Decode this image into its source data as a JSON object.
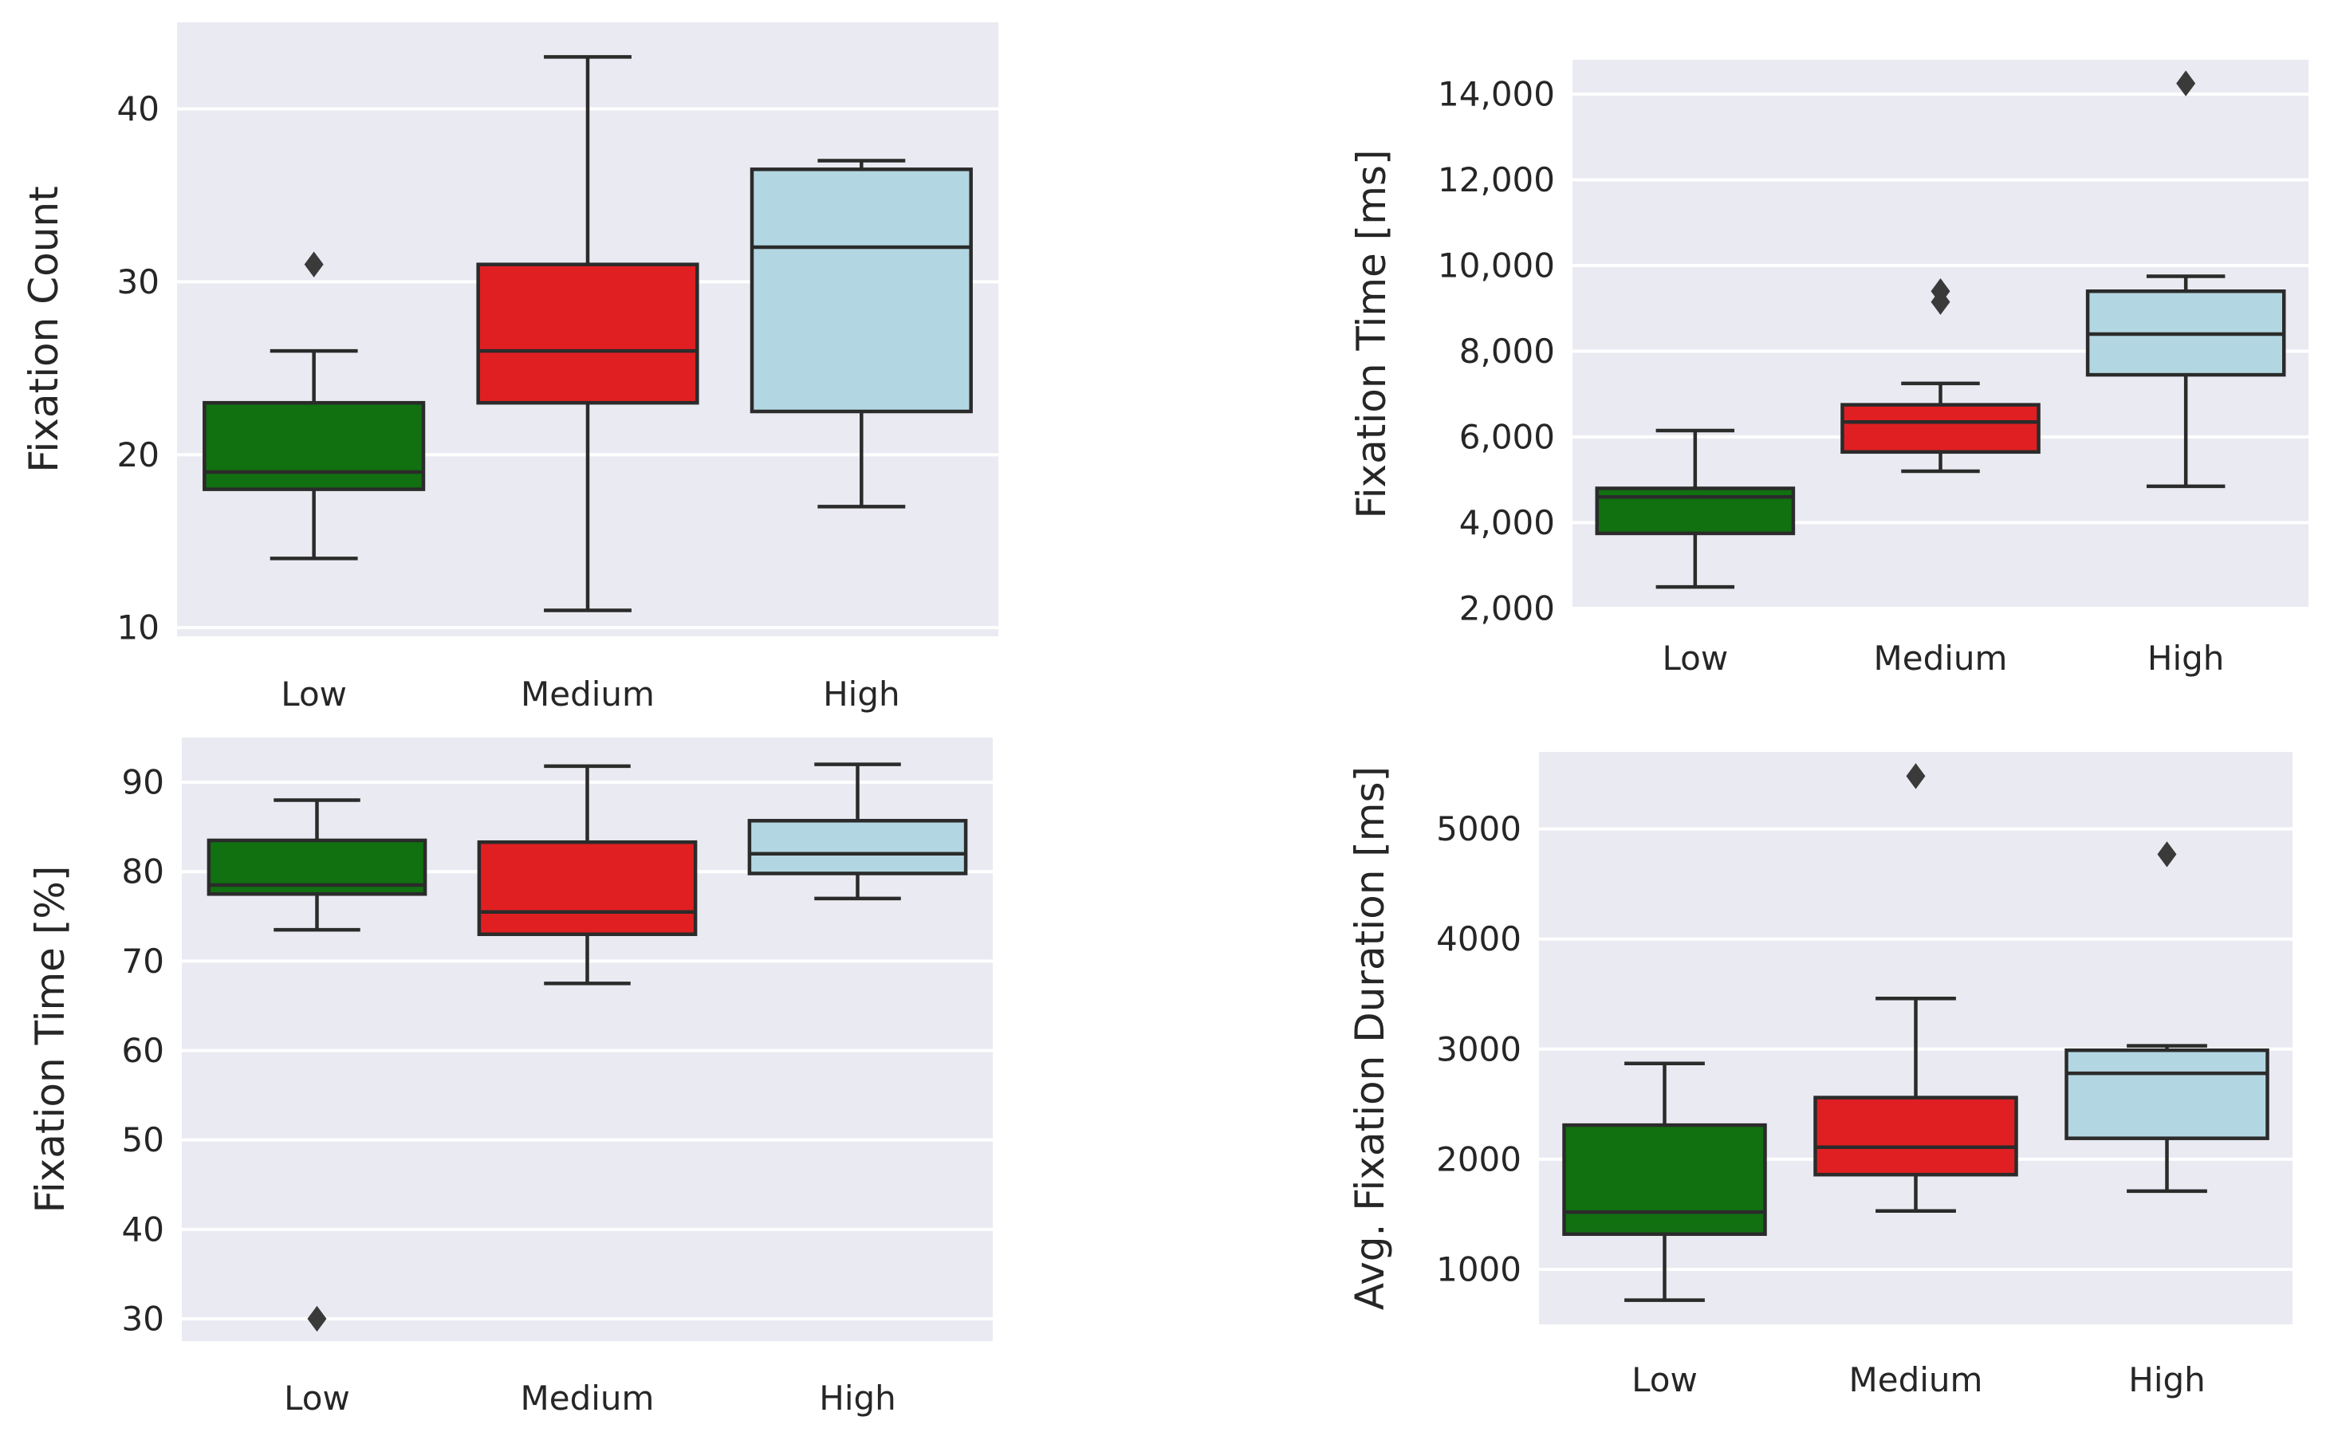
{
  "chart_data": [
    {
      "type": "box",
      "ylabel": "Fixation Count",
      "categories": [
        "Low",
        "Medium",
        "High"
      ],
      "ylim": [
        9.5,
        45
      ],
      "yticks": [
        10,
        20,
        30,
        40
      ],
      "ytick_labels": [
        "10",
        "20",
        "30",
        "40"
      ],
      "boxes": [
        {
          "category": "Low",
          "whisker_low": 14,
          "q1": 18,
          "median": 19,
          "q3": 23,
          "whisker_high": 26,
          "outliers": [
            31
          ]
        },
        {
          "category": "Medium",
          "whisker_low": 11,
          "q1": 23,
          "median": 26,
          "q3": 31,
          "whisker_high": 43,
          "outliers": []
        },
        {
          "category": "High",
          "whisker_low": 17,
          "q1": 22.5,
          "median": 32,
          "q3": 36.5,
          "whisker_high": 37,
          "outliers": []
        }
      ]
    },
    {
      "type": "box",
      "ylabel": "Fixation Time [ms]",
      "categories": [
        "Low",
        "Medium",
        "High"
      ],
      "ylim": [
        2000,
        14800
      ],
      "yticks": [
        2000,
        4000,
        6000,
        8000,
        10000,
        12000,
        14000
      ],
      "ytick_labels": [
        "2,000",
        "4,000",
        "6,000",
        "8,000",
        "10,000",
        "12,000",
        "14,000"
      ],
      "boxes": [
        {
          "category": "Low",
          "whisker_low": 2500,
          "q1": 3750,
          "median": 4600,
          "q3": 4800,
          "whisker_high": 6150,
          "outliers": []
        },
        {
          "category": "Medium",
          "whisker_low": 5200,
          "q1": 5650,
          "median": 6350,
          "q3": 6750,
          "whisker_high": 7250,
          "outliers": [
            9150,
            9400
          ]
        },
        {
          "category": "High",
          "whisker_low": 4850,
          "q1": 7450,
          "median": 8400,
          "q3": 9400,
          "whisker_high": 9750,
          "outliers": [
            14250
          ]
        }
      ]
    },
    {
      "type": "box",
      "ylabel": "Fixation Time [%]",
      "categories": [
        "Low",
        "Medium",
        "High"
      ],
      "ylim": [
        27.5,
        95
      ],
      "yticks": [
        30,
        40,
        50,
        60,
        70,
        80,
        90
      ],
      "ytick_labels": [
        "30",
        "40",
        "50",
        "60",
        "70",
        "80",
        "90"
      ],
      "boxes": [
        {
          "category": "Low",
          "whisker_low": 73.5,
          "q1": 77.5,
          "median": 78.5,
          "q3": 83.5,
          "whisker_high": 88,
          "outliers": [
            30
          ]
        },
        {
          "category": "Medium",
          "whisker_low": 67.5,
          "q1": 73,
          "median": 75.5,
          "q3": 83.3,
          "whisker_high": 91.8,
          "outliers": []
        },
        {
          "category": "High",
          "whisker_low": 77,
          "q1": 79.8,
          "median": 82,
          "q3": 85.7,
          "whisker_high": 92,
          "outliers": []
        }
      ]
    },
    {
      "type": "box",
      "ylabel": "Avg. Fixation Duration [ms]",
      "categories": [
        "Low",
        "Medium",
        "High"
      ],
      "ylim": [
        500,
        5700
      ],
      "yticks": [
        1000,
        2000,
        3000,
        4000,
        5000
      ],
      "ytick_labels": [
        "1000",
        "2000",
        "3000",
        "4000",
        "5000"
      ],
      "boxes": [
        {
          "category": "Low",
          "whisker_low": 720,
          "q1": 1320,
          "median": 1520,
          "q3": 2310,
          "whisker_high": 2870,
          "outliers": []
        },
        {
          "category": "Medium",
          "whisker_low": 1530,
          "q1": 1860,
          "median": 2110,
          "q3": 2560,
          "whisker_high": 3460,
          "outliers": [
            5480
          ]
        },
        {
          "category": "High",
          "whisker_low": 1710,
          "q1": 2190,
          "median": 2780,
          "q3": 2990,
          "whisker_high": 3030,
          "outliers": [
            4770
          ]
        }
      ]
    }
  ],
  "colors": {
    "figure_bg": "#ffffff",
    "axes_bg": "#eaeaf2",
    "grid": "#ffffff",
    "line": "#2b2b2b",
    "text": "#262626",
    "Low": "#117010",
    "Medium": "#e01f22",
    "High": "#b3d7e2"
  }
}
